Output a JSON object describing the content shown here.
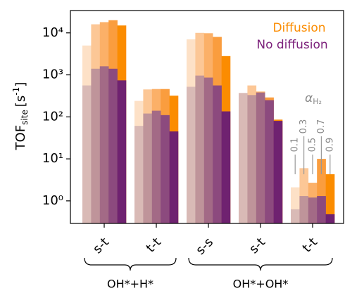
{
  "chart_data": {
    "type": "bar",
    "log_scale": true,
    "y_label": "TOF",
    "y_label_sub": "site",
    "y_label_unit": "[s",
    "y_label_sup": "-1",
    "y_label_end": "]",
    "groups": [
      {
        "name": "OH*+H*",
        "categories": [
          "s-t",
          "t-t"
        ]
      },
      {
        "name": "OH*+OH*",
        "categories": [
          "s-s",
          "s-t",
          "t-t"
        ]
      }
    ],
    "alpha_label": "α",
    "alpha_label_sub": "H₂",
    "alphas": [
      0.1,
      0.3,
      0.5,
      0.7,
      0.9
    ],
    "series": [
      {
        "name": "Diffusion",
        "color": "#fb8c00",
        "colors": [
          "#fde1c7",
          "#fcc796",
          "#fbb068",
          "#fa9d3e",
          "#fb8c00"
        ],
        "values": [
          [
            5000,
            16000,
            18000,
            20000,
            15000
          ],
          [
            240,
            450,
            460,
            460,
            320
          ],
          [
            7000,
            10000,
            9800,
            8000,
            2800
          ],
          [
            370,
            560,
            400,
            290,
            86
          ],
          [
            2.1,
            6.0,
            2.7,
            10,
            4.3
          ]
        ]
      },
      {
        "name": "No diffusion",
        "color": "#7b1f7a",
        "colors": [
          "#d9bab6",
          "#bf949a",
          "#a36a86",
          "#8c4a7e",
          "#6f2270"
        ],
        "values": [
          [
            560,
            1400,
            1600,
            1400,
            740
          ],
          [
            61,
            120,
            140,
            110,
            45
          ],
          [
            520,
            960,
            860,
            560,
            135
          ],
          [
            370,
            330,
            380,
            250,
            80
          ],
          [
            0.63,
            1.3,
            1.2,
            1.3,
            0.48
          ]
        ]
      }
    ],
    "ylim": [
      0.29,
      34000
    ],
    "yticks": [
      {
        "value": 1,
        "label": "10⁰"
      },
      {
        "value": 10,
        "label": "10¹"
      },
      {
        "value": 100,
        "label": "10²"
      },
      {
        "value": 1000,
        "label": "10³"
      },
      {
        "value": 10000,
        "label": "10⁴"
      }
    ]
  }
}
